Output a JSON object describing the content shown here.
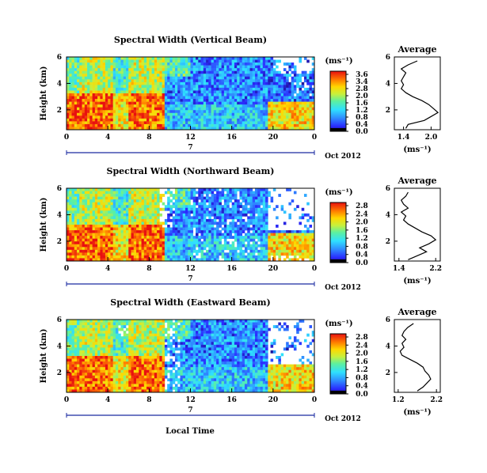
{
  "footer": {
    "xlabel": "Local Time"
  },
  "chart_data": [
    {
      "type": "heatmap",
      "title": "Spectral Width (Vertical Beam)",
      "ylabel": "Height (km)",
      "xticks": [
        "0",
        "4",
        "8",
        "12",
        "16",
        "20",
        "0"
      ],
      "yticks": [
        "6",
        "4",
        "2"
      ],
      "date_label": "7",
      "month_label": "Oct 2012",
      "colorbar": {
        "unit": "(ms⁻¹)",
        "ticks": [
          "3.6",
          "3.4",
          "2.8",
          "2.0",
          "1.6",
          "1.2",
          "0.8",
          "0.4",
          "0.0"
        ],
        "range": [
          0,
          3.6
        ]
      },
      "profile": {
        "title": "Average",
        "xlabel": "(ms⁻¹)",
        "xticks": [
          "1.4",
          "2.0"
        ],
        "yticks": [
          "6",
          "4",
          "2"
        ],
        "xlim": [
          1.2,
          2.2
        ],
        "ylim": [
          0.5,
          6
        ],
        "height_km": [
          0.6,
          0.9,
          1.2,
          1.5,
          1.8,
          2.1,
          2.4,
          2.7,
          3.0,
          3.3,
          3.6,
          3.9,
          4.2,
          4.5,
          4.8,
          5.1,
          5.4,
          5.7
        ],
        "width": [
          1.45,
          1.5,
          1.85,
          2.0,
          2.15,
          2.05,
          1.95,
          1.8,
          1.6,
          1.45,
          1.35,
          1.4,
          1.35,
          1.4,
          1.45,
          1.35,
          1.5,
          1.7
        ]
      }
    },
    {
      "type": "heatmap",
      "title": "Spectral Width (Northward Beam)",
      "ylabel": "Height (km)",
      "xticks": [
        "0",
        "4",
        "8",
        "12",
        "16",
        "20",
        "0"
      ],
      "yticks": [
        "6",
        "4",
        "2"
      ],
      "date_label": "7",
      "month_label": "Oct 2012",
      "colorbar": {
        "unit": "(ms⁻¹)",
        "ticks": [
          "2.8",
          "2.4",
          "2.0",
          "1.6",
          "1.2",
          "0.8",
          "0.4",
          "0.0"
        ],
        "range": [
          0,
          2.8
        ]
      },
      "profile": {
        "title": "Average",
        "xlabel": "(ms⁻¹)",
        "xticks": [
          "1.4",
          "2.2"
        ],
        "yticks": [
          "6",
          "4",
          "2"
        ],
        "xlim": [
          1.3,
          2.3
        ],
        "ylim": [
          0.5,
          6
        ],
        "height_km": [
          0.6,
          0.9,
          1.2,
          1.5,
          1.8,
          2.1,
          2.4,
          2.7,
          3.0,
          3.3,
          3.6,
          3.9,
          4.2,
          4.5,
          4.8,
          5.1,
          5.4,
          5.7
        ],
        "width": [
          1.6,
          1.8,
          2.0,
          1.85,
          2.05,
          2.2,
          2.1,
          1.9,
          1.75,
          1.6,
          1.5,
          1.55,
          1.45,
          1.6,
          1.5,
          1.45,
          1.55,
          1.6
        ]
      }
    },
    {
      "type": "heatmap",
      "title": "Spectral Width (Eastward Beam)",
      "ylabel": "Height (km)",
      "xticks": [
        "0",
        "4",
        "8",
        "12",
        "16",
        "20",
        "0"
      ],
      "yticks": [
        "6",
        "4",
        "2"
      ],
      "date_label": "7",
      "month_label": "Oct 2012",
      "colorbar": {
        "unit": "(ms⁻¹)",
        "ticks": [
          "2.8",
          "2.4",
          "2.0",
          "1.6",
          "1.2",
          "0.8",
          "0.4",
          "0.0"
        ],
        "range": [
          0,
          2.8
        ]
      },
      "profile": {
        "title": "Average",
        "xlabel": "(ms⁻¹)",
        "xticks": [
          "1.2",
          "2.2"
        ],
        "yticks": [
          "6",
          "4",
          "2"
        ],
        "xlim": [
          1.1,
          2.3
        ],
        "ylim": [
          0.5,
          6
        ],
        "height_km": [
          0.6,
          0.9,
          1.2,
          1.5,
          1.8,
          2.1,
          2.4,
          2.7,
          3.0,
          3.3,
          3.6,
          3.9,
          4.2,
          4.5,
          4.8,
          5.1,
          5.4,
          5.7
        ],
        "width": [
          1.7,
          1.85,
          1.95,
          2.05,
          2.0,
          1.9,
          1.85,
          1.7,
          1.5,
          1.3,
          1.25,
          1.35,
          1.3,
          1.4,
          1.3,
          1.35,
          1.45,
          1.6
        ]
      }
    }
  ]
}
